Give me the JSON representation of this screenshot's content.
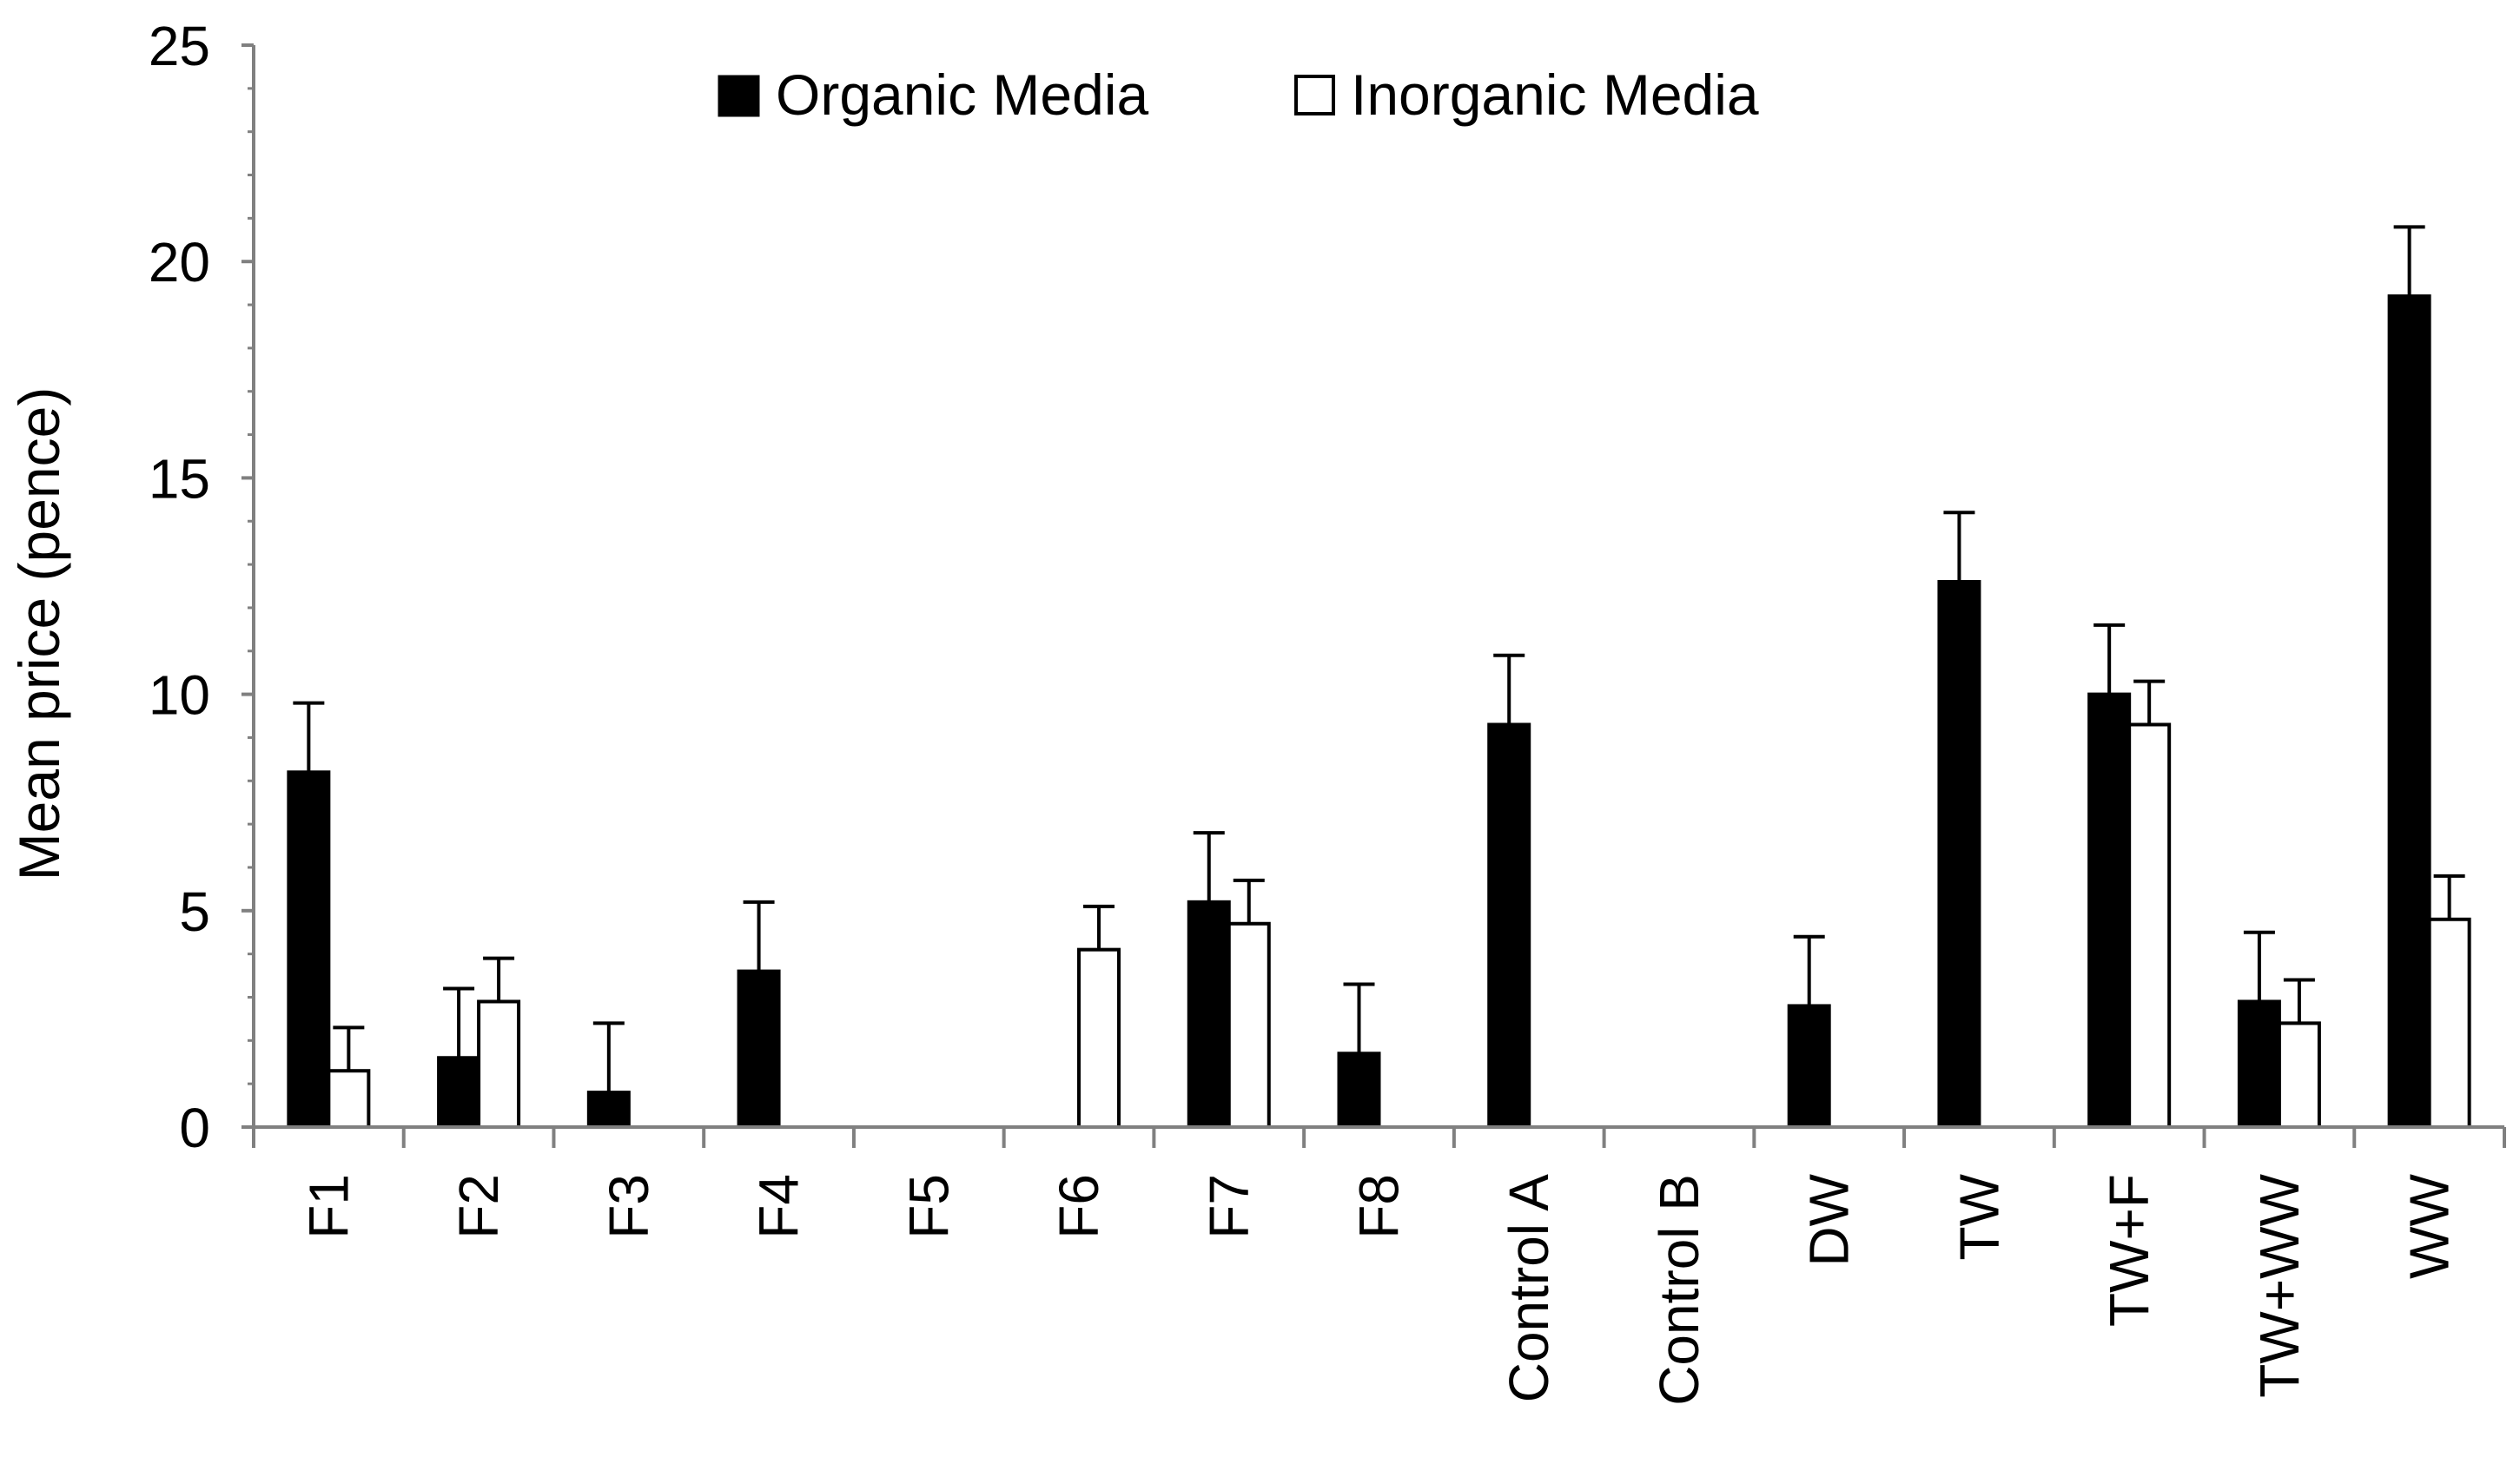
{
  "chart_data": {
    "type": "bar",
    "title": "",
    "xlabel": "",
    "ylabel": "Mean price (pence)",
    "ylim": [
      0,
      25
    ],
    "yticks": [
      "0",
      "5",
      "10",
      "15",
      "20",
      "25"
    ],
    "grid": false,
    "legend_position": "top-center",
    "categories": [
      "F1",
      "F2",
      "F3",
      "F4",
      "F5",
      "F6",
      "F7",
      "F8",
      "Control A",
      "Control B",
      "DW",
      "TW",
      "TW+F",
      "TW+WW",
      "WW"
    ],
    "series": [
      {
        "name": "Organic Media",
        "fill": "#000000",
        "values": [
          8.2,
          1.6,
          0.8,
          3.6,
          0,
          0,
          5.2,
          1.7,
          9.3,
          0,
          2.8,
          12.6,
          10.0,
          2.9,
          19.2
        ],
        "errors": [
          1.6,
          1.6,
          1.6,
          1.6,
          0,
          0,
          1.6,
          1.6,
          1.6,
          0,
          1.6,
          1.6,
          1.6,
          1.6,
          1.6
        ]
      },
      {
        "name": "Inorganic Media",
        "fill": "#ffffff",
        "values": [
          1.3,
          2.9,
          0,
          0,
          0,
          4.1,
          4.7,
          0,
          0,
          0,
          0,
          0,
          9.3,
          2.4,
          4.8
        ],
        "errors": [
          1.0,
          1.0,
          0,
          0,
          0,
          1.0,
          1.0,
          0,
          0,
          0,
          0,
          0,
          1.0,
          1.0,
          1.0
        ]
      }
    ]
  }
}
